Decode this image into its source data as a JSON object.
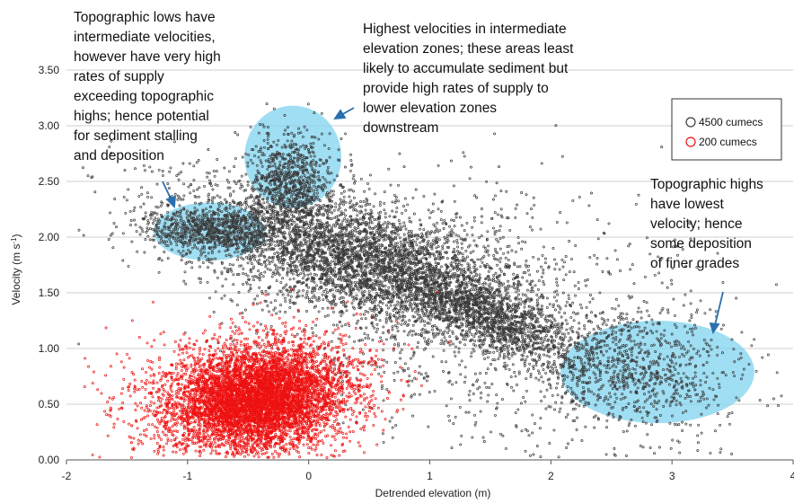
{
  "chart_data": {
    "type": "scatter",
    "title": "",
    "xlabel": "Detrended elevation (m)",
    "ylabel_main": "Velocity (m s",
    "ylabel_sup": "-1",
    "ylabel_end": ")",
    "xlim": [
      -2,
      4
    ],
    "ylim": [
      0,
      3.5
    ],
    "xticks": [
      -2,
      -1,
      0,
      1,
      2,
      3,
      4
    ],
    "xtick_labels": [
      "-2",
      "-1",
      "0",
      "1",
      "2",
      "3",
      "4"
    ],
    "yticks": [
      0,
      0.5,
      1,
      1.5,
      2,
      2.5,
      3,
      3.5
    ],
    "ytick_labels": [
      "0.00",
      "0.50",
      "1.00",
      "1.50",
      "2.00",
      "2.50",
      "3.00",
      "3.50"
    ],
    "grid": "horizontal",
    "legend_position": "top-right",
    "series": [
      {
        "name": "4500 cumecs",
        "color": "#3a3a3a",
        "marker": "open-circle",
        "clusters": [
          {
            "cx": 0.4,
            "cy": 1.8,
            "sx": 0.75,
            "sy": 0.25,
            "rot": -0.3,
            "n": 4200
          },
          {
            "cx": 1.45,
            "cy": 1.3,
            "sx": 0.45,
            "sy": 0.14,
            "rot": -0.45,
            "n": 1400
          },
          {
            "cx": -0.8,
            "cy": 2.05,
            "sx": 0.28,
            "sy": 0.1,
            "rot": 0.0,
            "n": 700
          },
          {
            "cx": -0.15,
            "cy": 2.5,
            "sx": 0.16,
            "sy": 0.22,
            "rot": 0.0,
            "n": 800
          },
          {
            "cx": 2.7,
            "cy": 0.8,
            "sx": 0.4,
            "sy": 0.25,
            "rot": -0.2,
            "n": 700
          },
          {
            "cx": 1.5,
            "cy": 1.2,
            "sx": 1.1,
            "sy": 0.6,
            "rot": -0.3,
            "n": 1300
          }
        ]
      },
      {
        "name": "200 cumecs",
        "color": "#ee1111",
        "marker": "open-circle",
        "clusters": [
          {
            "cx": -0.4,
            "cy": 0.55,
            "sx": 0.35,
            "sy": 0.22,
            "rot": 0.2,
            "n": 5000
          },
          {
            "cx": -0.5,
            "cy": 0.55,
            "sx": 0.5,
            "sy": 0.3,
            "rot": 0.15,
            "n": 1800
          }
        ]
      }
    ],
    "highlight_regions": [
      {
        "name": "topographic-lows",
        "cx": -0.82,
        "cy": 2.05,
        "rx": 0.46,
        "ry": 0.26,
        "fill": "#7fd3ef"
      },
      {
        "name": "intermediate-elevation",
        "cx": -0.13,
        "cy": 2.72,
        "rx": 0.4,
        "ry": 0.46,
        "fill": "#7fd3ef"
      },
      {
        "name": "topographic-highs",
        "cx": 2.88,
        "cy": 0.79,
        "rx": 0.8,
        "ry": 0.46,
        "fill": "#7fd3ef"
      }
    ],
    "annotations": [
      {
        "name": "annotation-lows",
        "lines": [
          "Topographic lows have",
          "intermediate velocities,",
          "however have very high",
          "rates of supply",
          "exceeding topographic",
          "highs; hence potential",
          "for sediment stalling",
          "and deposition"
        ]
      },
      {
        "name": "annotation-intermediate",
        "lines": [
          "Highest velocities in intermediate",
          "elevation zones; these areas least",
          "likely to accumulate sediment but",
          "provide high rates of supply to",
          "lower elevation zones",
          "downstream"
        ]
      },
      {
        "name": "annotation-highs",
        "lines": [
          "Topographic highs",
          "have lowest",
          "velocity; hence",
          "some deposition",
          "of finer grades"
        ]
      }
    ]
  }
}
